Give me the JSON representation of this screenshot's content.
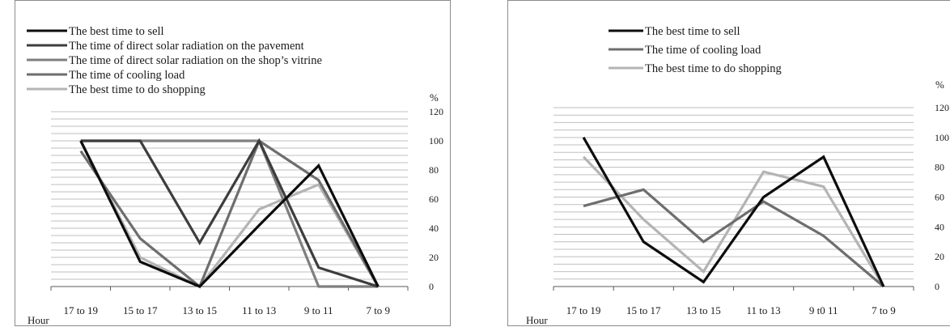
{
  "colors": {
    "best_time_to_sell": "#0d0d0d",
    "direct_solar_pavement": "#3d3d3d",
    "direct_solar_vitrine": "#7f7f7f",
    "cooling_load": "#6e6e6e",
    "best_time_to_shop": "#b4b4b4",
    "gridline": "#bfbfbf",
    "frame": "#8c8c8c"
  },
  "chart_data": [
    {
      "type": "line",
      "title": "",
      "xlabel": "Hour",
      "ylabel": "%",
      "ylim": [
        0,
        120
      ],
      "yticks": [
        "0",
        "20",
        "40",
        "60",
        "80",
        "100",
        "120"
      ],
      "grid": "horizontal",
      "legend_placement": "top-left",
      "categories": [
        "17 to 19",
        "15 to 17",
        "13 to 15",
        "11 to 13",
        "9 to 11",
        "7 to 9"
      ],
      "series": [
        {
          "name": "The best time to sell",
          "color_key": "best_time_to_sell",
          "values": [
            100,
            17,
            0,
            42,
            83,
            0
          ]
        },
        {
          "name": "The time of direct solar radiation on the pavement",
          "color_key": "direct_solar_pavement",
          "values": [
            100,
            100,
            30,
            100,
            13,
            0
          ]
        },
        {
          "name": "The time of direct solar radiation on the shop’s vitrine",
          "color_key": "direct_solar_vitrine",
          "values": [
            100,
            100,
            100,
            100,
            0,
            0
          ]
        },
        {
          "name": "The time of cooling load",
          "color_key": "cooling_load",
          "values": [
            93,
            33,
            0,
            100,
            73,
            0
          ]
        },
        {
          "name": "The best time to do shopping",
          "color_key": "best_time_to_shop",
          "values": [
            100,
            20,
            0,
            53,
            70,
            0
          ]
        }
      ]
    },
    {
      "type": "line",
      "title": "",
      "xlabel": "Hour",
      "ylabel": "%",
      "ylim": [
        0,
        120
      ],
      "yticks": [
        "0",
        "20",
        "40",
        "60",
        "80",
        "100",
        "120"
      ],
      "grid": "horizontal",
      "legend_placement": "top",
      "categories": [
        "17 to 19",
        "15 to 17",
        "13 to 15",
        "11 to 13",
        "9 t0 11",
        "7 to 9"
      ],
      "series": [
        {
          "name": "The best time to sell",
          "color_key": "best_time_to_sell",
          "values": [
            100,
            30,
            3,
            60,
            87,
            0
          ]
        },
        {
          "name": "The time of cooling load",
          "color_key": "cooling_load",
          "values": [
            54,
            65,
            30,
            57,
            34,
            0
          ]
        },
        {
          "name": "The best time to do shopping",
          "color_key": "best_time_to_shop",
          "values": [
            87,
            45,
            10,
            77,
            67,
            0
          ]
        }
      ]
    }
  ]
}
